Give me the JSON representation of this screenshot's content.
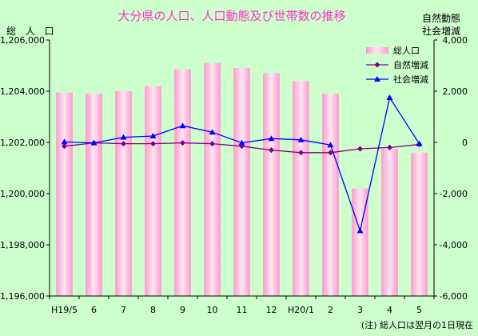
{
  "chart_data": {
    "type": "bar",
    "title": "大分県の人口、人口動態及び世帯数の推移",
    "left_axis_label": "総 人 口",
    "right_axis_label": [
      "自然動態",
      "社会増減"
    ],
    "note": "(注) 総人口は翌月の1日現在",
    "categories": [
      "H19/5",
      "6",
      "7",
      "8",
      "9",
      "10",
      "11",
      "12",
      "H20/1",
      "2",
      "3",
      "4",
      "5"
    ],
    "left_axis": {
      "ylim": [
        1196000,
        1206000
      ],
      "ticks": [
        1196000,
        1198000,
        1200000,
        1202000,
        1204000,
        1206000
      ],
      "tick_labels": [
        "1,196,000",
        "1,198,000",
        "1,200,000",
        "1,202,000",
        "1,204,000",
        "1,206,000"
      ]
    },
    "right_axis": {
      "ylim": [
        -6000,
        4000
      ],
      "ticks": [
        -6000,
        -4000,
        -2000,
        0,
        2000,
        4000
      ],
      "tick_labels": [
        "-6,000",
        "-4,000",
        "-2,000",
        "0",
        "2,000",
        "4,000"
      ]
    },
    "series": [
      {
        "name": "総人口",
        "kind": "bar",
        "axis": "left",
        "color": "#ff99cc",
        "values": [
          1203950,
          1203900,
          1204000,
          1204200,
          1204850,
          1205100,
          1204900,
          1204700,
          1204400,
          1203900,
          1200200,
          1201750,
          1201600
        ]
      },
      {
        "name": "自然増減",
        "kind": "line",
        "axis": "right",
        "color": "#800080",
        "marker": "diamond",
        "values": [
          -150,
          -20,
          -50,
          -50,
          -20,
          -50,
          -150,
          -300,
          -400,
          -400,
          -250,
          -200,
          -80
        ]
      },
      {
        "name": "社会増減",
        "kind": "line",
        "axis": "right",
        "color": "#0000ff",
        "marker": "triangle",
        "values": [
          20,
          -20,
          200,
          250,
          650,
          400,
          -20,
          150,
          100,
          -100,
          -3450,
          1750,
          -50
        ]
      }
    ],
    "legend_position": "top-right",
    "grid": false
  }
}
